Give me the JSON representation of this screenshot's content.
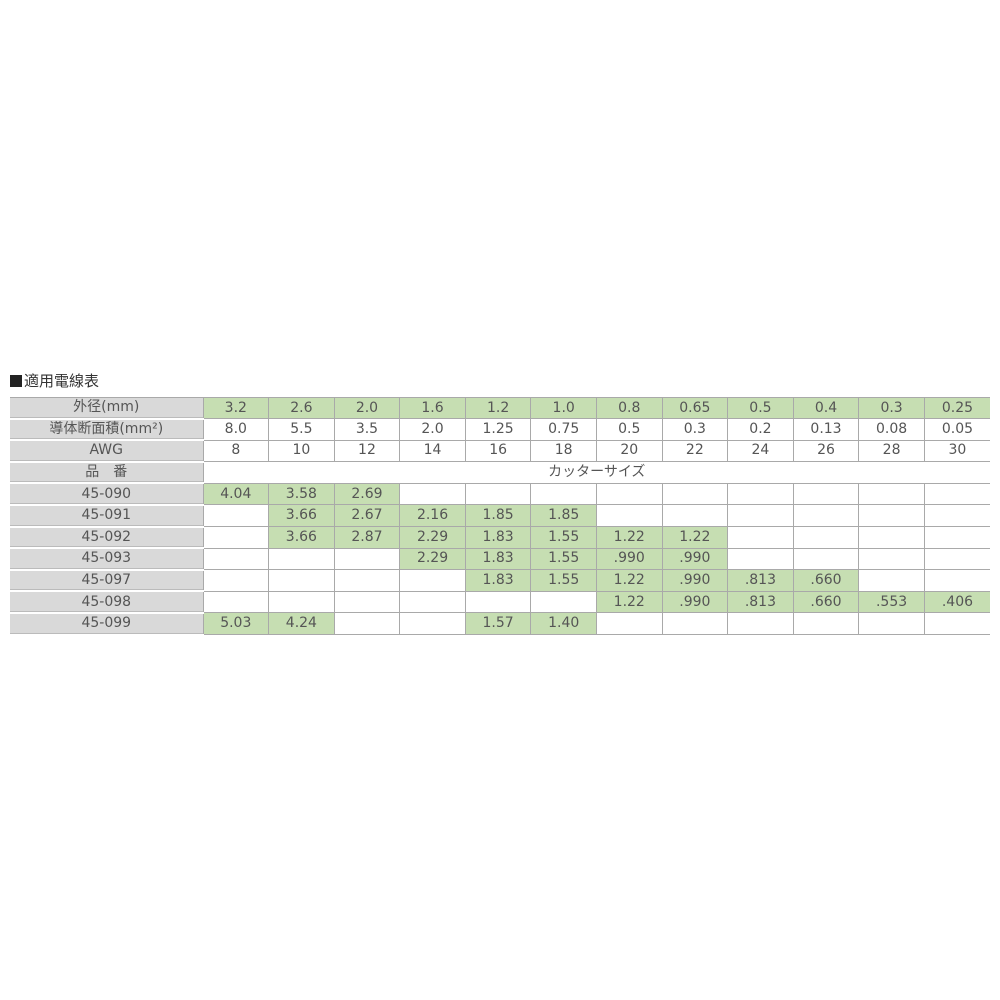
{
  "title": "適用電線表",
  "colors": {
    "highlight": "#c6deb2",
    "label_bg": "#d9d9d9"
  },
  "header_rows": [
    {
      "label": "外径(mm)",
      "values": [
        "3.2",
        "2.6",
        "2.0",
        "1.6",
        "1.2",
        "1.0",
        "0.8",
        "0.65",
        "0.5",
        "0.4",
        "0.3",
        "0.25"
      ],
      "highlight": true
    },
    {
      "label": "導体断面積(mm²)",
      "values": [
        "8.0",
        "5.5",
        "3.5",
        "2.0",
        "1.25",
        "0.75",
        "0.5",
        "0.3",
        "0.2",
        "0.13",
        "0.08",
        "0.05"
      ],
      "highlight": false
    },
    {
      "label": "AWG",
      "values": [
        "8",
        "10",
        "12",
        "14",
        "16",
        "18",
        "20",
        "22",
        "24",
        "26",
        "28",
        "30"
      ],
      "highlight": false
    }
  ],
  "part_header": {
    "label": "品　番",
    "span_text": "カッターサイズ"
  },
  "parts": [
    {
      "label": "45-090",
      "values": [
        "4.04",
        "3.58",
        "2.69",
        null,
        null,
        null,
        null,
        null,
        null,
        null,
        null,
        null
      ]
    },
    {
      "label": "45-091",
      "values": [
        null,
        "3.66",
        "2.67",
        "2.16",
        "1.85",
        "1.85",
        null,
        null,
        null,
        null,
        null,
        null
      ]
    },
    {
      "label": "45-092",
      "values": [
        null,
        "3.66",
        "2.87",
        "2.29",
        "1.83",
        "1.55",
        "1.22",
        "1.22",
        null,
        null,
        null,
        null
      ]
    },
    {
      "label": "45-093",
      "values": [
        null,
        null,
        null,
        "2.29",
        "1.83",
        "1.55",
        ".990",
        ".990",
        null,
        null,
        null,
        null
      ]
    },
    {
      "label": "45-097",
      "values": [
        null,
        null,
        null,
        null,
        "1.83",
        "1.55",
        "1.22",
        ".990",
        ".813",
        ".660",
        null,
        null
      ]
    },
    {
      "label": "45-098",
      "values": [
        null,
        null,
        null,
        null,
        null,
        null,
        "1.22",
        ".990",
        ".813",
        ".660",
        ".553",
        ".406"
      ]
    },
    {
      "label": "45-099",
      "values": [
        "5.03",
        "4.24",
        null,
        null,
        "1.57",
        "1.40",
        null,
        null,
        null,
        null,
        null,
        null
      ]
    }
  ]
}
